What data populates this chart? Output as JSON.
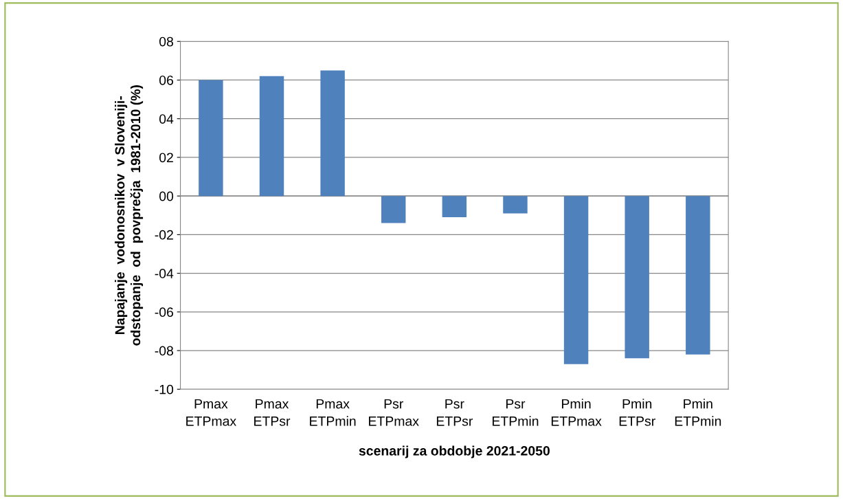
{
  "chart_data": {
    "type": "bar",
    "xlabel": "scenarij za obdobje 2021-2050",
    "ylabel": "Napajanje  vodonosnikov  v Sloveniji-\nodstopanje  od  povprečja  1981-2010 (%)",
    "categories": [
      "Pmax\nETPmax",
      "Pmax\nETPsr",
      "Pmax\nETPmin",
      "Psr\nETPmax",
      "Psr\nETPsr",
      "Psr\nETPmin",
      "Pmin\nETPmax",
      "Pmin\nETPsr",
      "Pmin\nETPmin"
    ],
    "values": [
      6.0,
      6.2,
      6.5,
      -1.4,
      -1.1,
      -0.9,
      -8.7,
      -8.4,
      -8.2
    ],
    "color": "#4f81bd",
    "ylim": [
      -10,
      8
    ],
    "yticks": [
      {
        "value": 8,
        "label": "08"
      },
      {
        "value": 6,
        "label": "06"
      },
      {
        "value": 4,
        "label": "04"
      },
      {
        "value": 2,
        "label": "02"
      },
      {
        "value": 0,
        "label": "00"
      },
      {
        "value": -2,
        "label": "-02"
      },
      {
        "value": -4,
        "label": "-04"
      },
      {
        "value": -6,
        "label": "-06"
      },
      {
        "value": -8,
        "label": "-08"
      },
      -10
    ],
    "grid": "y",
    "legend": false
  }
}
